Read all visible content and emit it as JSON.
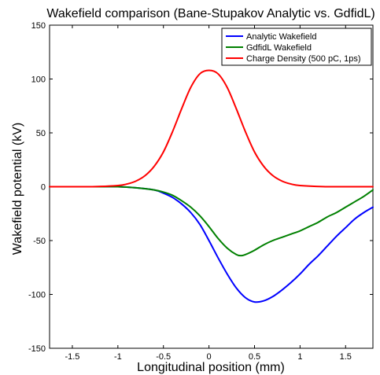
{
  "chart_data": {
    "type": "line",
    "title": "Wakefield comparison (Bane-Stupakov Analytic vs. GdfidL)",
    "xlabel": "Longitudinal position (mm)",
    "ylabel": "Wakefield potential (kV)",
    "xlim": [
      -1.75,
      1.8
    ],
    "ylim": [
      -150,
      150
    ],
    "xticks": [
      -1.5,
      -1,
      -0.5,
      0,
      0.5,
      1,
      1.5
    ],
    "xtick_labels": [
      "-1.5",
      "-1",
      "-0.5",
      "0",
      "0.5",
      "1",
      "1.5"
    ],
    "yticks": [
      -150,
      -100,
      -50,
      0,
      50,
      100,
      150
    ],
    "ytick_labels": [
      "-150",
      "-100",
      "-50",
      "0",
      "50",
      "100",
      "150"
    ],
    "grid": false,
    "legend_position": "top-right",
    "series": [
      {
        "name": "Analytic Wakefield",
        "color": "#0000ff",
        "x": [
          -1.75,
          -1.5,
          -1.25,
          -1.0,
          -0.8,
          -0.6,
          -0.5,
          -0.4,
          -0.3,
          -0.2,
          -0.1,
          0.0,
          0.1,
          0.2,
          0.3,
          0.4,
          0.5,
          0.6,
          0.7,
          0.8,
          0.9,
          1.0,
          1.1,
          1.2,
          1.3,
          1.4,
          1.5,
          1.6,
          1.7,
          1.8
        ],
        "y": [
          0,
          0,
          0,
          0,
          -1,
          -3,
          -6,
          -10,
          -16,
          -24,
          -35,
          -50,
          -66,
          -81,
          -94,
          -103,
          -107,
          -106,
          -102,
          -96,
          -89,
          -81,
          -72,
          -64,
          -55,
          -46,
          -38,
          -30,
          -24,
          -19
        ]
      },
      {
        "name": "GdfidL Wakefield",
        "color": "#008000",
        "x": [
          -1.75,
          -1.5,
          -1.25,
          -1.0,
          -0.8,
          -0.6,
          -0.5,
          -0.4,
          -0.3,
          -0.2,
          -0.1,
          0.0,
          0.1,
          0.2,
          0.3,
          0.35,
          0.4,
          0.5,
          0.6,
          0.7,
          0.8,
          0.9,
          1.0,
          1.1,
          1.2,
          1.3,
          1.4,
          1.5,
          1.6,
          1.7,
          1.8
        ],
        "y": [
          0,
          0,
          0,
          0,
          -1,
          -3,
          -5,
          -8,
          -13,
          -19,
          -27,
          -37,
          -48,
          -57,
          -63,
          -64,
          -63,
          -59,
          -54,
          -50,
          -47,
          -44,
          -41,
          -37,
          -33,
          -28,
          -24,
          -19,
          -14,
          -9,
          -3
        ]
      },
      {
        "name": "Charge Density (500 pC, 1ps)",
        "color": "#ff0000",
        "x": [
          -1.75,
          -1.5,
          -1.25,
          -1.0,
          -0.9,
          -0.8,
          -0.7,
          -0.6,
          -0.5,
          -0.4,
          -0.3,
          -0.2,
          -0.1,
          0.0,
          0.1,
          0.2,
          0.3,
          0.4,
          0.5,
          0.6,
          0.7,
          0.8,
          0.9,
          1.0,
          1.25,
          1.5,
          1.8
        ],
        "y": [
          0,
          0,
          0.1,
          1.1,
          2.5,
          5.3,
          10.4,
          19.1,
          32.3,
          51.1,
          72.4,
          92.2,
          104.8,
          108,
          104.8,
          92.2,
          72.4,
          51.1,
          32.3,
          19.1,
          10.4,
          5.3,
          2.5,
          1.1,
          0.1,
          0,
          0
        ]
      }
    ]
  }
}
